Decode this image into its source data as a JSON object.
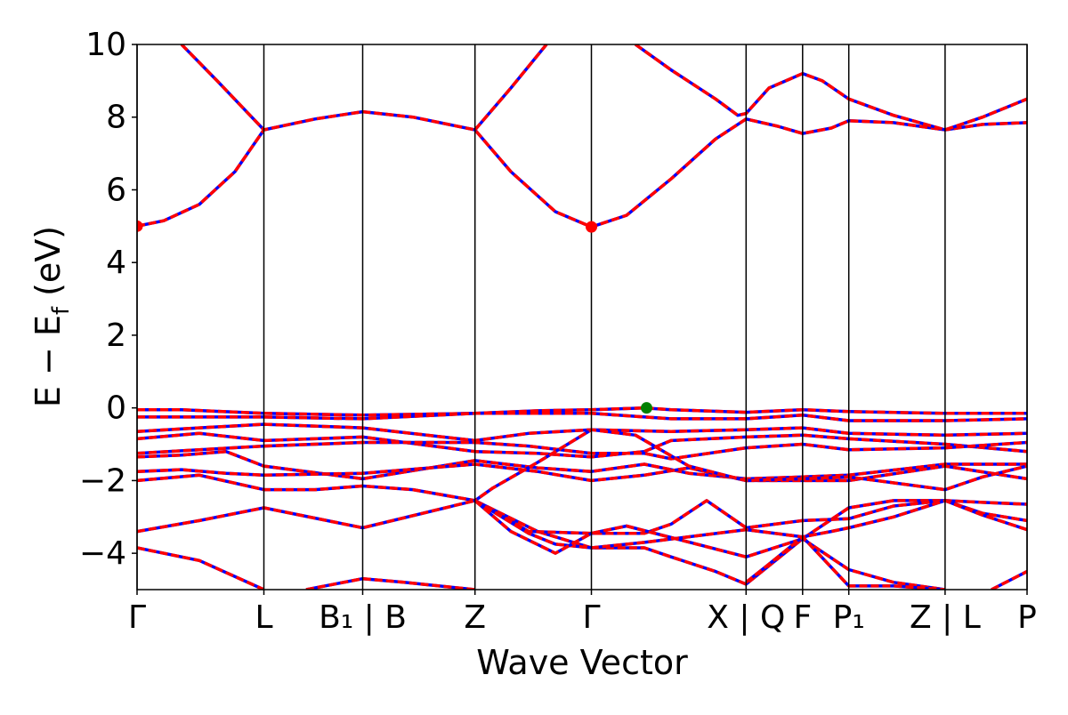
{
  "chart_data": {
    "type": "line",
    "xlabel": "Wave Vector",
    "ylabel_main": "E − E",
    "ylabel_sub": "f",
    "ylabel_unit": " (eV)",
    "ylim": [
      -5,
      10
    ],
    "yticks": [
      -4,
      -2,
      0,
      2,
      4,
      6,
      8,
      10
    ],
    "ytick_labels": [
      "−4",
      "−2",
      "0",
      "2",
      "4",
      "6",
      "8",
      "10"
    ],
    "xlim": [
      0,
      1
    ],
    "grid": false,
    "legend": "none",
    "colors": {
      "band": "#ff0000",
      "band_overlay": "#0000ff",
      "vbm": "#008000",
      "cbm": "#ff0000"
    },
    "kpoints": [
      {
        "x": 0.0,
        "label": "Γ"
      },
      {
        "x": 0.1425,
        "label": "L"
      },
      {
        "x": 0.2535,
        "label": "B₁ | B"
      },
      {
        "x": 0.3797,
        "label": "Z"
      },
      {
        "x": 0.5105,
        "label": "Γ"
      },
      {
        "x": 0.6843,
        "label": "X | Q"
      },
      {
        "x": 0.7478,
        "label": "F"
      },
      {
        "x": 0.7997,
        "label": "P₁"
      },
      {
        "x": 0.9079,
        "label": "Z | L"
      },
      {
        "x": 1.0,
        "label": "P"
      }
    ],
    "series": [
      {
        "points": [
          [
            0,
            5.0
          ],
          [
            0.03,
            5.15
          ],
          [
            0.07,
            5.6
          ],
          [
            0.11,
            6.5
          ],
          [
            0.1425,
            7.65
          ],
          [
            0.2,
            7.95
          ],
          [
            0.2535,
            8.15
          ],
          [
            0.31,
            8.0
          ],
          [
            0.3797,
            7.65
          ],
          [
            0.42,
            6.5
          ],
          [
            0.47,
            5.4
          ],
          [
            0.5105,
            4.98
          ],
          [
            0.55,
            5.3
          ],
          [
            0.6,
            6.3
          ],
          [
            0.65,
            7.4
          ],
          [
            0.6843,
            7.95
          ],
          [
            0.72,
            7.75
          ],
          [
            0.7478,
            7.55
          ],
          [
            0.78,
            7.7
          ],
          [
            0.7997,
            7.9
          ],
          [
            0.85,
            7.85
          ],
          [
            0.9079,
            7.65
          ],
          [
            0.95,
            7.8
          ],
          [
            1.0,
            7.85
          ]
        ]
      },
      {
        "points": [
          [
            0.05,
            10.0
          ],
          [
            0.09,
            9.0
          ],
          [
            0.1425,
            7.65
          ]
        ]
      },
      {
        "points": [
          [
            0.3797,
            7.65
          ],
          [
            0.42,
            8.8
          ],
          [
            0.46,
            10.0
          ]
        ]
      },
      {
        "points": [
          [
            0.56,
            10.0
          ],
          [
            0.6,
            9.3
          ],
          [
            0.65,
            8.5
          ],
          [
            0.675,
            8.05
          ],
          [
            0.6843,
            8.1
          ],
          [
            0.71,
            8.8
          ],
          [
            0.7478,
            9.2
          ],
          [
            0.77,
            9.0
          ],
          [
            0.7997,
            8.5
          ],
          [
            0.85,
            8.05
          ],
          [
            0.9079,
            7.65
          ],
          [
            0.95,
            8.0
          ],
          [
            1.0,
            8.5
          ]
        ]
      },
      {
        "points": [
          [
            0,
            -0.05
          ],
          [
            0.05,
            -0.05
          ],
          [
            0.1425,
            -0.15
          ],
          [
            0.2535,
            -0.2
          ],
          [
            0.3797,
            -0.15
          ],
          [
            0.45,
            -0.08
          ],
          [
            0.5105,
            -0.05
          ],
          [
            0.57,
            0.0
          ],
          [
            0.6,
            -0.05
          ],
          [
            0.6843,
            -0.12
          ],
          [
            0.7478,
            -0.05
          ],
          [
            0.7997,
            -0.1
          ],
          [
            0.9079,
            -0.15
          ],
          [
            1.0,
            -0.15
          ]
        ]
      },
      {
        "points": [
          [
            0,
            -0.25
          ],
          [
            0.1425,
            -0.25
          ],
          [
            0.2535,
            -0.3
          ],
          [
            0.3797,
            -0.15
          ],
          [
            0.5105,
            -0.15
          ],
          [
            0.6,
            -0.3
          ],
          [
            0.6843,
            -0.3
          ],
          [
            0.7478,
            -0.2
          ],
          [
            0.7997,
            -0.35
          ],
          [
            0.9079,
            -0.35
          ],
          [
            1.0,
            -0.3
          ]
        ]
      },
      {
        "points": [
          [
            0,
            -0.65
          ],
          [
            0.07,
            -0.55
          ],
          [
            0.1425,
            -0.45
          ],
          [
            0.2535,
            -0.55
          ],
          [
            0.3797,
            -0.9
          ],
          [
            0.44,
            -0.7
          ],
          [
            0.5105,
            -0.6
          ],
          [
            0.6,
            -0.65
          ],
          [
            0.6843,
            -0.6
          ],
          [
            0.7478,
            -0.55
          ],
          [
            0.7997,
            -0.7
          ],
          [
            0.9079,
            -0.75
          ],
          [
            1.0,
            -0.7
          ]
        ]
      },
      {
        "points": [
          [
            0,
            -0.85
          ],
          [
            0.07,
            -0.7
          ],
          [
            0.1425,
            -0.9
          ],
          [
            0.2535,
            -0.8
          ],
          [
            0.3797,
            -1.2
          ],
          [
            0.45,
            -1.25
          ],
          [
            0.5105,
            -1.35
          ],
          [
            0.57,
            -1.2
          ],
          [
            0.6,
            -0.9
          ],
          [
            0.6843,
            -0.8
          ],
          [
            0.7478,
            -0.75
          ],
          [
            0.7997,
            -0.85
          ],
          [
            0.9079,
            -1.0
          ],
          [
            1.0,
            -1.2
          ]
        ]
      },
      {
        "points": [
          [
            0,
            -1.25
          ],
          [
            0.07,
            -1.15
          ],
          [
            0.1425,
            -1.05
          ],
          [
            0.2535,
            -0.95
          ],
          [
            0.3797,
            -0.95
          ],
          [
            0.44,
            -1.05
          ],
          [
            0.5105,
            -1.25
          ],
          [
            0.57,
            -1.25
          ],
          [
            0.6,
            -1.4
          ],
          [
            0.6843,
            -1.1
          ],
          [
            0.7478,
            -1.0
          ],
          [
            0.7997,
            -1.15
          ],
          [
            0.9079,
            -1.1
          ],
          [
            1.0,
            -0.95
          ]
        ]
      },
      {
        "points": [
          [
            0,
            -1.35
          ],
          [
            0.05,
            -1.3
          ],
          [
            0.1,
            -1.2
          ],
          [
            0.1425,
            -1.6
          ],
          [
            0.2535,
            -1.95
          ],
          [
            0.3797,
            -1.45
          ],
          [
            0.45,
            -1.65
          ],
          [
            0.5105,
            -1.75
          ],
          [
            0.57,
            -1.55
          ],
          [
            0.62,
            -1.8
          ],
          [
            0.6843,
            -1.95
          ],
          [
            0.7478,
            -1.9
          ],
          [
            0.7997,
            -1.85
          ],
          [
            0.9079,
            -1.55
          ],
          [
            1.0,
            -1.55
          ]
        ]
      },
      {
        "points": [
          [
            0,
            -1.75
          ],
          [
            0.05,
            -1.7
          ],
          [
            0.1,
            -1.8
          ],
          [
            0.1425,
            -1.85
          ],
          [
            0.2535,
            -1.8
          ],
          [
            0.3797,
            -1.55
          ],
          [
            0.45,
            -1.75
          ],
          [
            0.5105,
            -2.0
          ],
          [
            0.57,
            -1.85
          ],
          [
            0.62,
            -1.65
          ],
          [
            0.6843,
            -2.0
          ],
          [
            0.7478,
            -2.0
          ],
          [
            0.7997,
            -2.0
          ],
          [
            0.9079,
            -1.6
          ],
          [
            1.0,
            -1.95
          ]
        ]
      },
      {
        "points": [
          [
            0,
            -2.0
          ],
          [
            0.07,
            -1.85
          ],
          [
            0.1425,
            -2.25
          ],
          [
            0.2,
            -2.25
          ],
          [
            0.2535,
            -2.15
          ],
          [
            0.31,
            -2.25
          ],
          [
            0.3797,
            -2.55
          ],
          [
            0.4,
            -2.2
          ],
          [
            0.45,
            -1.5
          ],
          [
            0.5105,
            -0.6
          ],
          [
            0.56,
            -0.75
          ],
          [
            0.62,
            -1.6
          ],
          [
            0.6843,
            -2.0
          ],
          [
            0.7478,
            -1.95
          ],
          [
            0.7997,
            -1.9
          ],
          [
            0.9079,
            -2.25
          ],
          [
            0.95,
            -1.9
          ],
          [
            1.0,
            -1.6
          ]
        ]
      },
      {
        "points": [
          [
            0,
            -3.4
          ],
          [
            0.07,
            -3.1
          ],
          [
            0.1425,
            -2.75
          ],
          [
            0.2535,
            -3.3
          ],
          [
            0.3797,
            -2.55
          ],
          [
            0.45,
            -3.4
          ],
          [
            0.5105,
            -3.85
          ],
          [
            0.57,
            -3.85
          ],
          [
            0.6,
            -4.1
          ],
          [
            0.65,
            -4.5
          ],
          [
            0.6843,
            -4.85
          ],
          [
            0.7478,
            -3.6
          ],
          [
            0.7997,
            -2.75
          ],
          [
            0.85,
            -2.55
          ],
          [
            0.9079,
            -2.55
          ],
          [
            0.95,
            -2.6
          ],
          [
            1.0,
            -2.65
          ]
        ]
      },
      {
        "points": [
          [
            0,
            -3.85
          ],
          [
            0.07,
            -4.2
          ],
          [
            0.1425,
            -5.0
          ]
        ]
      },
      {
        "points": [
          [
            0.3797,
            -2.55
          ],
          [
            0.44,
            -3.4
          ],
          [
            0.5105,
            -3.45
          ],
          [
            0.57,
            -3.45
          ],
          [
            0.6,
            -3.2
          ],
          [
            0.64,
            -2.55
          ],
          [
            0.6843,
            -3.3
          ],
          [
            0.7478,
            -3.1
          ],
          [
            0.7997,
            -3.05
          ],
          [
            0.85,
            -2.7
          ],
          [
            0.9079,
            -2.55
          ],
          [
            0.95,
            -2.9
          ],
          [
            1.0,
            -3.1
          ]
        ]
      },
      {
        "points": [
          [
            0.3797,
            -2.55
          ],
          [
            0.44,
            -3.45
          ],
          [
            0.47,
            -3.75
          ],
          [
            0.5105,
            -3.85
          ],
          [
            0.57,
            -3.7
          ],
          [
            0.6843,
            -3.35
          ],
          [
            0.7478,
            -3.55
          ],
          [
            0.78,
            -3.4
          ],
          [
            0.7997,
            -3.3
          ],
          [
            0.85,
            -3.0
          ],
          [
            0.9079,
            -2.55
          ],
          [
            0.95,
            -2.95
          ],
          [
            1.0,
            -3.35
          ]
        ]
      },
      {
        "points": [
          [
            0.3797,
            -2.55
          ],
          [
            0.42,
            -3.4
          ],
          [
            0.47,
            -4.0
          ],
          [
            0.5105,
            -3.45
          ],
          [
            0.55,
            -3.25
          ],
          [
            0.6843,
            -4.1
          ],
          [
            0.7478,
            -3.6
          ],
          [
            0.7997,
            -4.45
          ],
          [
            0.85,
            -4.8
          ],
          [
            0.9079,
            -5.0
          ]
        ]
      },
      {
        "points": [
          [
            0.19,
            -5.0
          ],
          [
            0.2535,
            -4.7
          ],
          [
            0.3,
            -4.8
          ],
          [
            0.3797,
            -5.0
          ]
        ]
      },
      {
        "points": [
          [
            0.6843,
            -4.8
          ],
          [
            0.71,
            -4.3
          ],
          [
            0.7478,
            -3.55
          ],
          [
            0.7997,
            -4.9
          ],
          [
            0.85,
            -4.9
          ],
          [
            0.9079,
            -5.0
          ]
        ]
      },
      {
        "points": [
          [
            0.96,
            -5.0
          ],
          [
            1.0,
            -4.5
          ]
        ]
      }
    ],
    "markers": [
      {
        "x": 0.0,
        "y": 5.0,
        "kind": "cbm"
      },
      {
        "x": 0.5105,
        "y": 4.98,
        "kind": "cbm"
      },
      {
        "x": 0.5725,
        "y": 0.0,
        "kind": "vbm"
      }
    ]
  }
}
